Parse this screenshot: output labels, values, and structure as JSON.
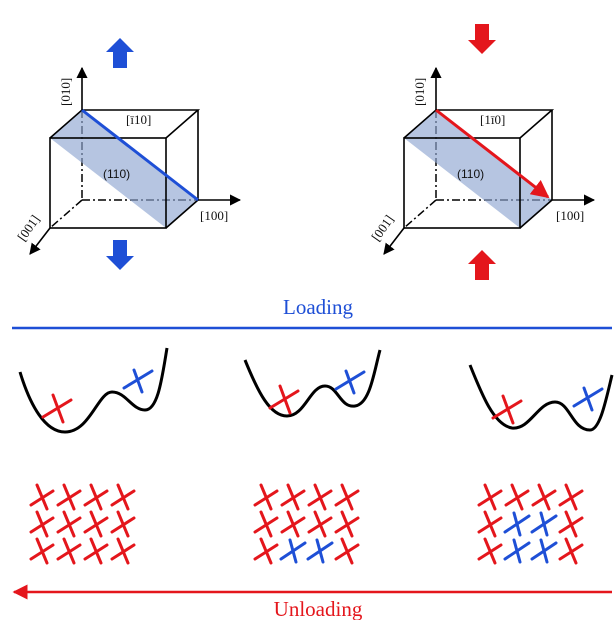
{
  "colors": {
    "compression": "#1e4fd6",
    "tension": "#e4161c",
    "plane_fill": "#8fa6d1",
    "line": "#000000"
  },
  "crystals": [
    {
      "y_axis": "[010]",
      "x_axis": "[100]",
      "z_axis": "[001]",
      "plane": "(110)",
      "direction": "[ī10]",
      "load_color": "#1e4fd6",
      "arrows": "outward"
    },
    {
      "y_axis": "[010]",
      "x_axis": "[100]",
      "z_axis": "[001]",
      "plane": "(110)",
      "direction": "[1ī0]",
      "load_color": "#e4161c",
      "arrows": "inward"
    }
  ],
  "loading_label": "Loading",
  "unloading_label": "Unloading",
  "lattice_panels": [
    {
      "rows": [
        [
          "R",
          "R",
          "R",
          "R"
        ],
        [
          "R",
          "R",
          "R",
          "R"
        ],
        [
          "R",
          "R",
          "R",
          "R"
        ]
      ]
    },
    {
      "rows": [
        [
          "R",
          "R",
          "R",
          "R"
        ],
        [
          "R",
          "R",
          "R",
          "R"
        ],
        [
          "R",
          "B",
          "B",
          "R"
        ]
      ]
    },
    {
      "rows": [
        [
          "R",
          "R",
          "R",
          "R"
        ],
        [
          "R",
          "B",
          "B",
          "R"
        ],
        [
          "R",
          "B",
          "B",
          "R"
        ]
      ]
    }
  ]
}
